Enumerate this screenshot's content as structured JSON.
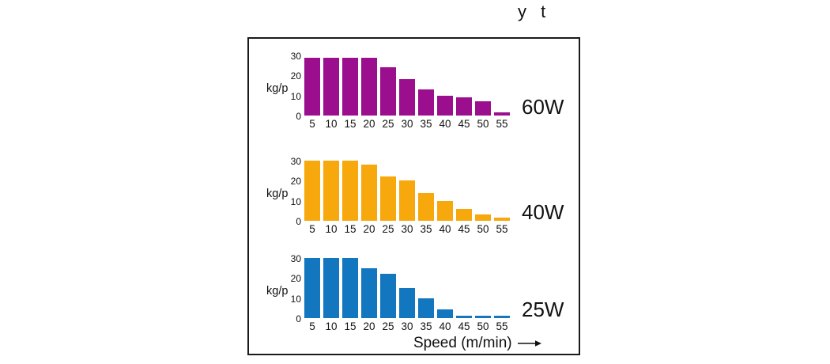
{
  "page": {
    "title": "y t"
  },
  "figure": {
    "xlabel": "Speed (m/min)",
    "arrow_icon": "right-arrow",
    "frame_border_color": "#1a1a1a",
    "background_color": "#ffffff"
  },
  "chart_data": [
    {
      "type": "bar",
      "name": "60W",
      "ylabel": "kg/p",
      "color": "#9B0E8D",
      "categories": [
        5,
        10,
        15,
        20,
        25,
        30,
        35,
        40,
        45,
        50,
        55
      ],
      "values": [
        29,
        29,
        29,
        29,
        24,
        18,
        13,
        10,
        9,
        7,
        1.5
      ],
      "yticks": [
        30,
        20,
        10,
        0
      ],
      "ylim": [
        0,
        30
      ],
      "grid": false,
      "series_label_position": "right"
    },
    {
      "type": "bar",
      "name": "40W",
      "ylabel": "kg/p",
      "color": "#F7A80D",
      "categories": [
        5,
        10,
        15,
        20,
        25,
        30,
        35,
        40,
        45,
        50,
        55
      ],
      "values": [
        30,
        30,
        30,
        28,
        22,
        20,
        14,
        10,
        6,
        3,
        1.5
      ],
      "yticks": [
        30,
        20,
        10,
        0
      ],
      "ylim": [
        0,
        30
      ],
      "grid": false,
      "series_label_position": "right"
    },
    {
      "type": "bar",
      "name": "25W",
      "ylabel": "kg/p",
      "color": "#1377BF",
      "categories": [
        5,
        10,
        15,
        20,
        25,
        30,
        35,
        40,
        45,
        50,
        55
      ],
      "values": [
        30,
        30,
        30,
        25,
        22,
        15,
        10,
        4.5,
        1,
        1,
        1
      ],
      "yticks": [
        30,
        20,
        10,
        0
      ],
      "ylim": [
        0,
        30
      ],
      "grid": false,
      "series_label_position": "right"
    }
  ]
}
